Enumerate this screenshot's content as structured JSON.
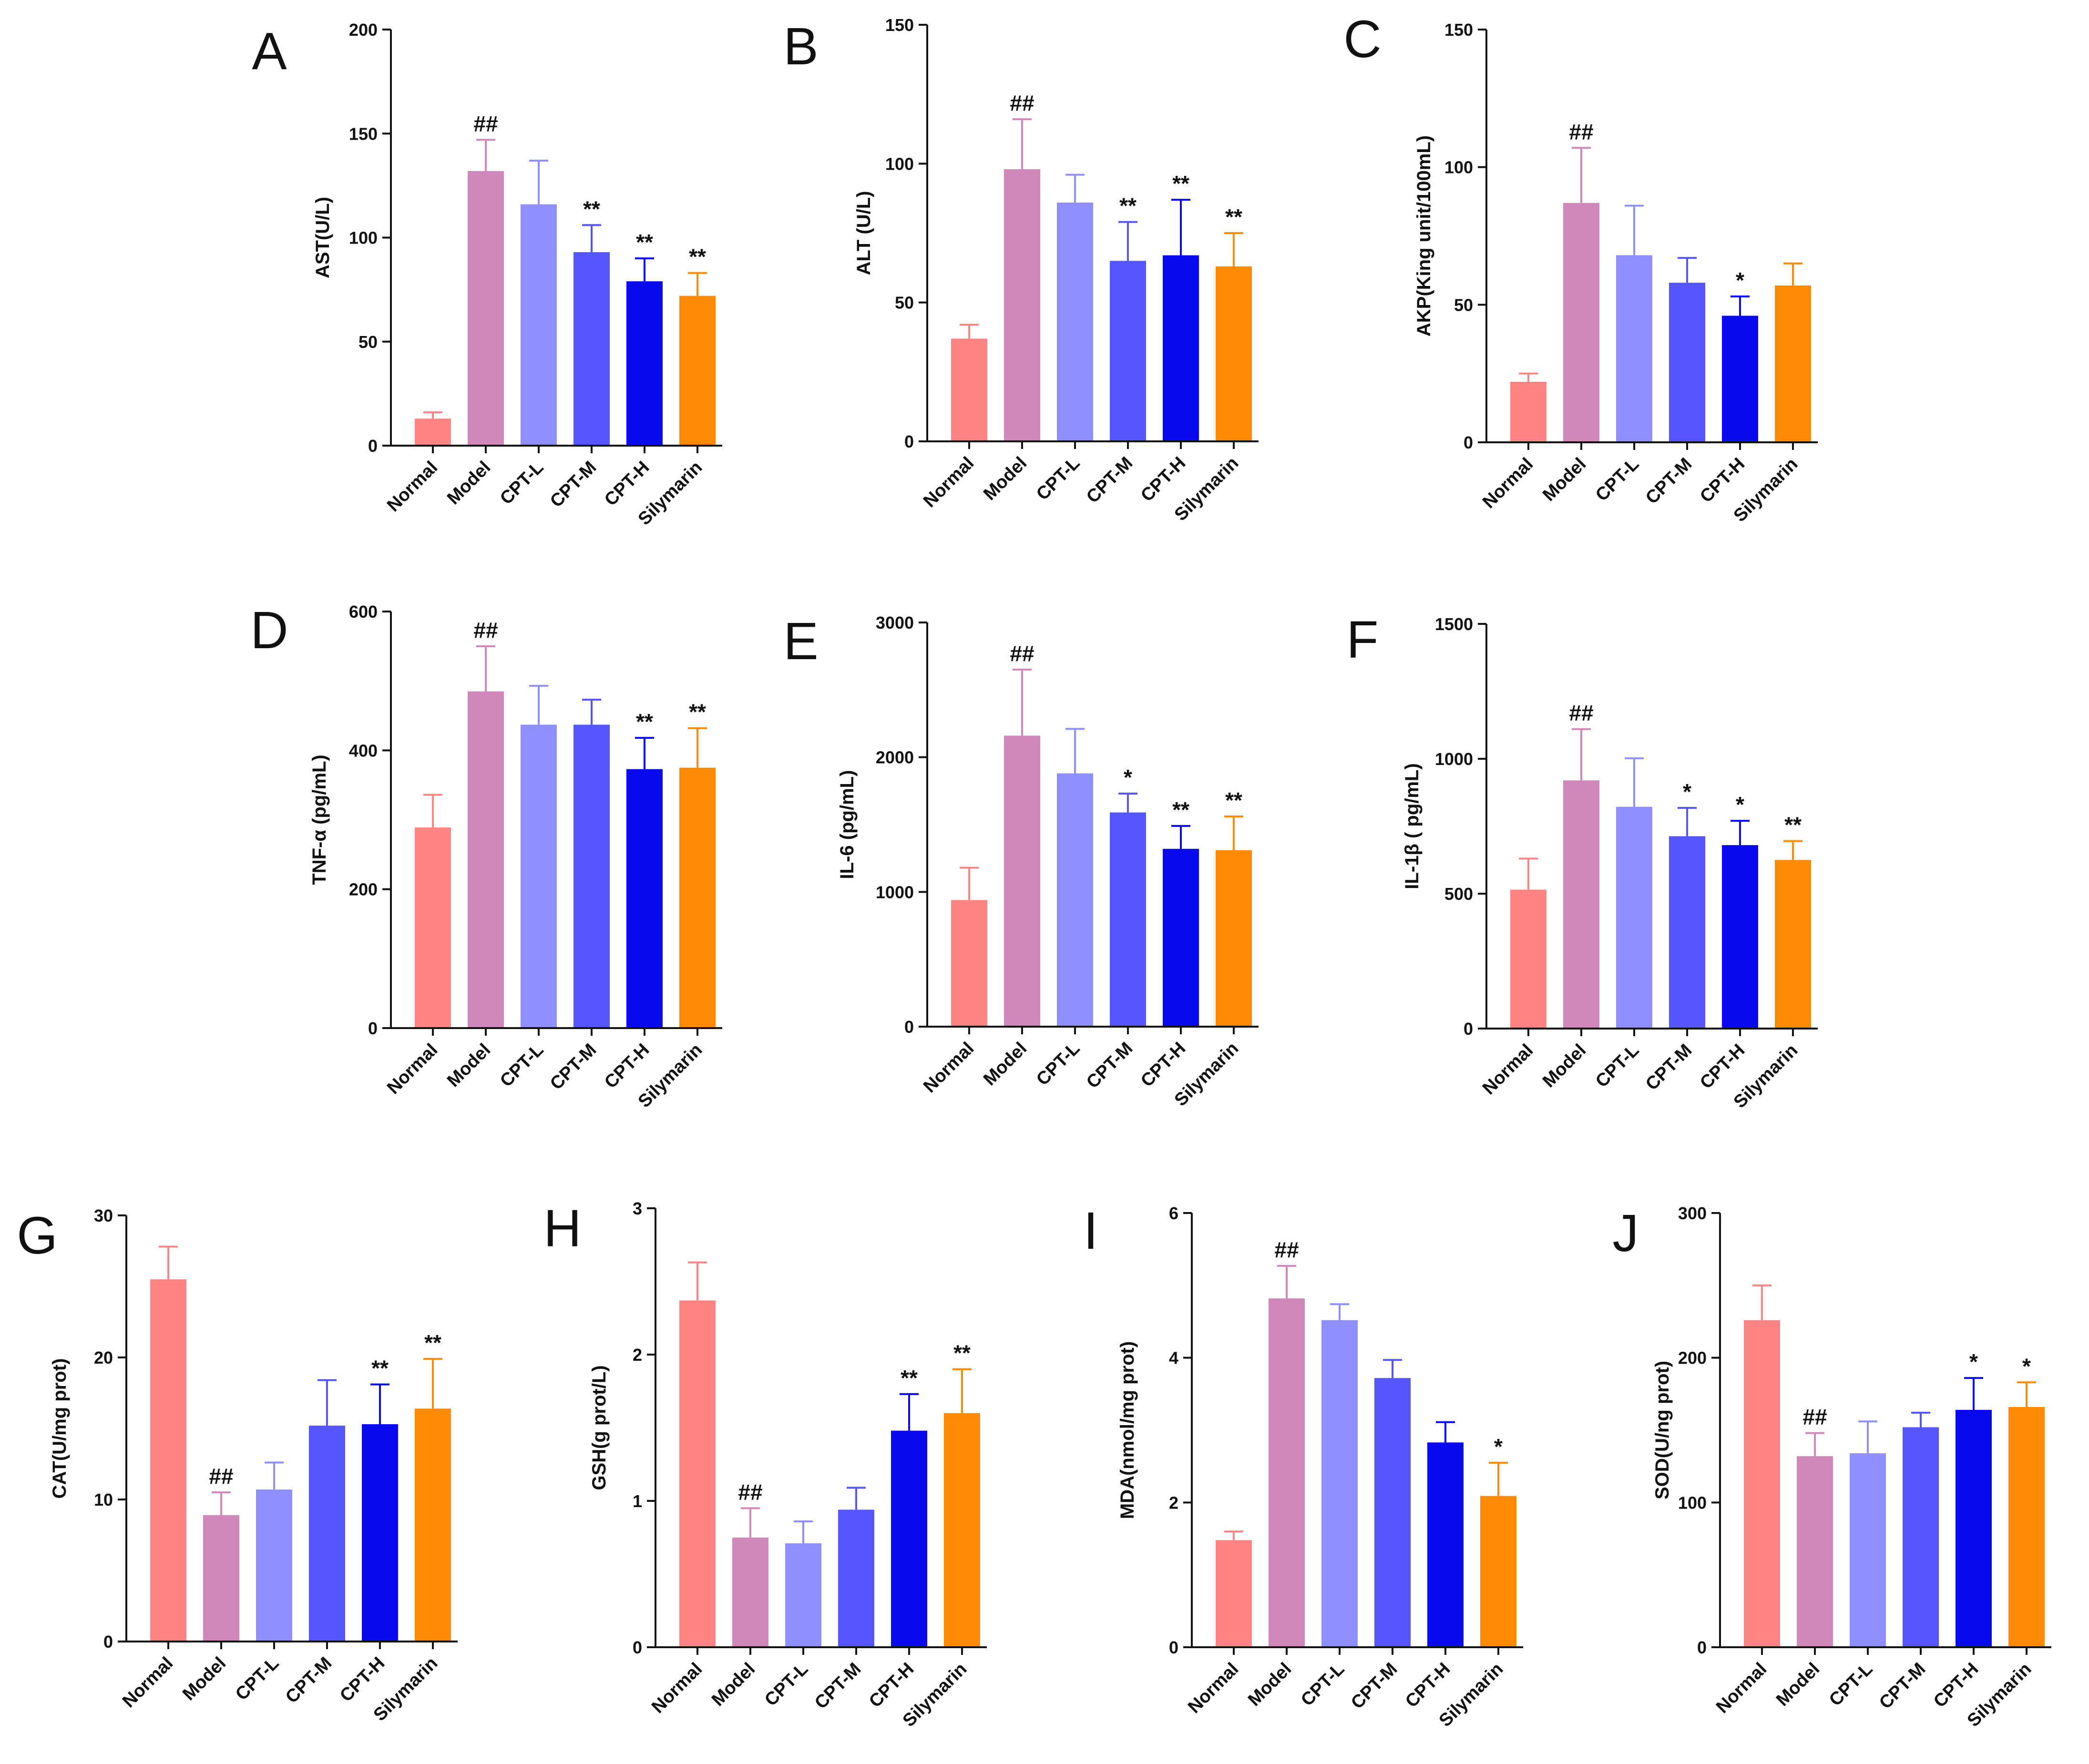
{
  "figure": {
    "categories": [
      "Normal",
      "Model",
      "CPT-L",
      "CPT-M",
      "CPT-H",
      "Silymarin"
    ],
    "colors": [
      "#FF8585",
      "#D088BA",
      "#8F8FFF",
      "#5656FF",
      "#0A0AF0",
      "#FF8A06"
    ]
  },
  "chart_data": [
    {
      "type": "bar",
      "panel": "A",
      "ylabel": "AST(U/L)",
      "ylim": [
        0,
        200
      ],
      "yticks": [
        0,
        50,
        100,
        150,
        200
      ],
      "values": [
        13,
        132,
        116,
        93,
        79,
        72
      ],
      "errors": [
        3,
        15,
        21,
        13,
        11,
        11
      ],
      "annotations": [
        "",
        "##",
        "",
        "**",
        "**",
        "**"
      ]
    },
    {
      "type": "bar",
      "panel": "B",
      "ylabel": "ALT (U/L)",
      "ylim": [
        0,
        150
      ],
      "yticks": [
        0,
        50,
        100,
        150
      ],
      "values": [
        37,
        98,
        86,
        65,
        67,
        63
      ],
      "errors": [
        5,
        18,
        10,
        14,
        20,
        12
      ],
      "annotations": [
        "",
        "##",
        "",
        "**",
        "**",
        "**"
      ]
    },
    {
      "type": "bar",
      "panel": "C",
      "ylabel": "AKP(King unit/100mL)",
      "ylim": [
        0,
        150
      ],
      "yticks": [
        0,
        50,
        100,
        150
      ],
      "values": [
        22,
        87,
        68,
        58,
        46,
        57
      ],
      "errors": [
        3,
        20,
        18,
        9,
        7,
        8
      ],
      "annotations": [
        "",
        "##",
        "",
        "",
        "*",
        ""
      ]
    },
    {
      "type": "bar",
      "panel": "D",
      "ylabel": "TNF-α (pg/mL)",
      "ylim": [
        0,
        600
      ],
      "yticks": [
        0,
        200,
        400,
        600
      ],
      "values": [
        289,
        485,
        437,
        437,
        373,
        375
      ],
      "errors": [
        47,
        65,
        56,
        36,
        45,
        57
      ],
      "annotations": [
        "",
        "##",
        "",
        "",
        "**",
        "**"
      ]
    },
    {
      "type": "bar",
      "panel": "E",
      "ylabel": "IL-6 (pg/mL)",
      "ylim": [
        0,
        3000
      ],
      "yticks": [
        0,
        1000,
        2000,
        3000
      ],
      "values": [
        940,
        2160,
        1880,
        1590,
        1320,
        1310
      ],
      "errors": [
        240,
        490,
        330,
        140,
        170,
        250
      ],
      "annotations": [
        "",
        "##",
        "",
        "*",
        "**",
        "**"
      ]
    },
    {
      "type": "bar",
      "panel": "F",
      "ylabel": "IL-1β ( pg/mL)",
      "ylim": [
        0,
        1500
      ],
      "yticks": [
        0,
        500,
        1000,
        1500
      ],
      "values": [
        515,
        920,
        822,
        713,
        680,
        625
      ],
      "errors": [
        115,
        190,
        180,
        105,
        90,
        70
      ],
      "annotations": [
        "",
        "##",
        "",
        "*",
        "*",
        "**"
      ]
    },
    {
      "type": "bar",
      "panel": "G",
      "ylabel": "CAT(U/mg prot)",
      "ylim": [
        0,
        30
      ],
      "yticks": [
        0,
        10,
        20,
        30
      ],
      "values": [
        25.5,
        8.9,
        10.7,
        15.2,
        15.3,
        16.4
      ],
      "errors": [
        2.3,
        1.6,
        1.9,
        3.2,
        2.8,
        3.5
      ],
      "annotations": [
        "",
        "##",
        "",
        "",
        "**",
        "**"
      ]
    },
    {
      "type": "bar",
      "panel": "H",
      "ylabel": "GSH(g prot/L)",
      "ylim": [
        0,
        3
      ],
      "yticks": [
        0,
        1,
        2,
        3
      ],
      "values": [
        2.37,
        0.75,
        0.71,
        0.94,
        1.48,
        1.6
      ],
      "errors": [
        0.26,
        0.2,
        0.15,
        0.15,
        0.25,
        0.3
      ],
      "annotations": [
        "",
        "##",
        "",
        "",
        "**",
        "**"
      ]
    },
    {
      "type": "bar",
      "panel": "I",
      "ylabel": "MDA(nmol/mg prot)",
      "ylim": [
        0,
        6
      ],
      "yticks": [
        0,
        2,
        4,
        6
      ],
      "values": [
        1.48,
        4.82,
        4.52,
        3.72,
        2.83,
        2.09
      ],
      "errors": [
        0.12,
        0.45,
        0.22,
        0.25,
        0.28,
        0.46
      ],
      "annotations": [
        "",
        "##",
        "",
        "",
        "",
        "*"
      ]
    },
    {
      "type": "bar",
      "panel": "J",
      "ylabel": "SOD(U/ng prot)",
      "ylim": [
        0,
        300
      ],
      "yticks": [
        0,
        100,
        200,
        300
      ],
      "values": [
        226,
        132,
        134,
        152,
        164,
        166
      ],
      "errors": [
        24,
        16,
        22,
        10,
        22,
        17
      ],
      "annotations": [
        "",
        "##",
        "",
        "",
        "*",
        "*"
      ]
    }
  ]
}
